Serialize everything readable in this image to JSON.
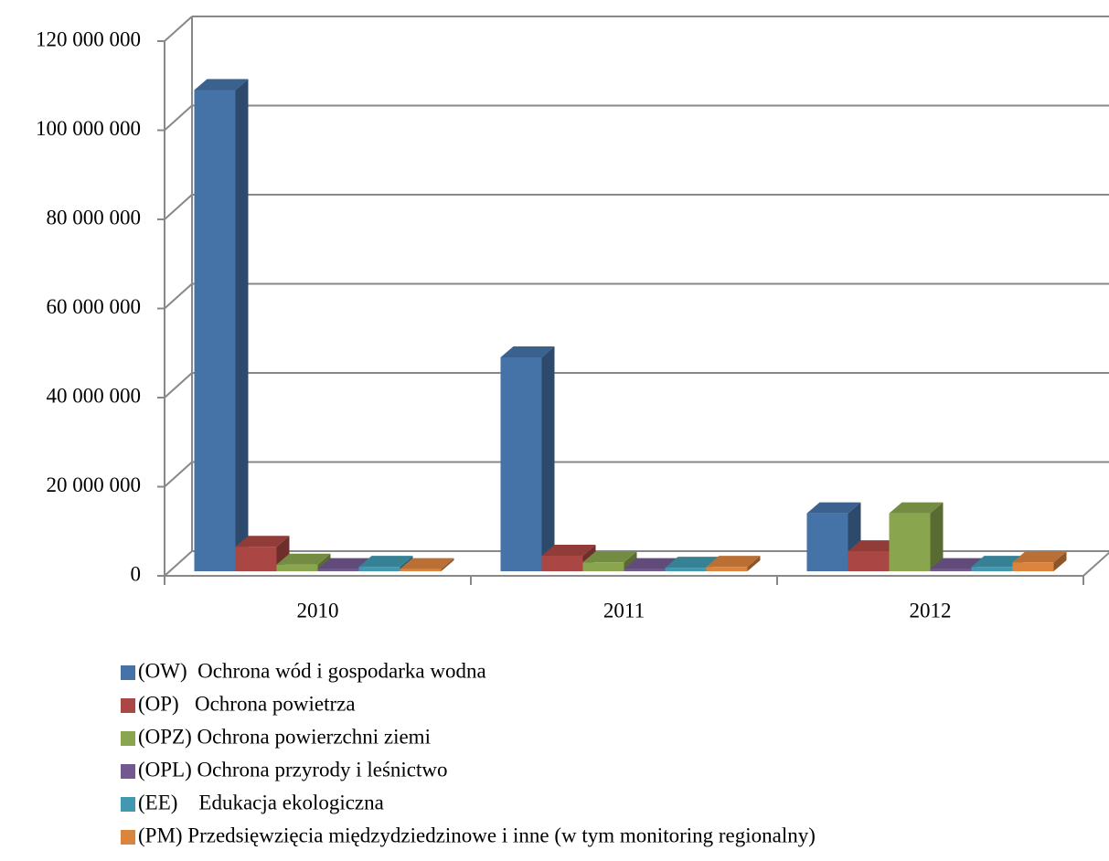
{
  "chart_data": {
    "type": "bar3d",
    "categories": [
      "2010",
      "2011",
      "2012"
    ],
    "series": [
      {
        "name": "(OW)  Ochrona wód i gospodarka wodna",
        "color": "#4572a7",
        "values": [
          108000000,
          48000000,
          13000000
        ]
      },
      {
        "name": "(OP)   Ochrona powietrza",
        "color": "#aa4643",
        "values": [
          5500000,
          3500000,
          4500000
        ]
      },
      {
        "name": "(OPZ) Ochrona powierzchni ziemi",
        "color": "#89a54e",
        "values": [
          1500000,
          2000000,
          13000000
        ]
      },
      {
        "name": "(OPL) Ochrona przyrody i leśnictwo",
        "color": "#71588f",
        "values": [
          500000,
          500000,
          500000
        ]
      },
      {
        "name": "(EE)    Edukacja ekologiczna",
        "color": "#4198af",
        "values": [
          1000000,
          800000,
          1000000
        ]
      },
      {
        "name": "(PM) Przedsięwzięcia międzydziedzinowe i inne (w tym monitoring regionalny)",
        "color": "#db843d",
        "values": [
          500000,
          1000000,
          2000000
        ]
      }
    ],
    "ylim": [
      0,
      120000000
    ],
    "yticks": [
      0,
      {
        "value": 20000000,
        "label": "20 000 000"
      },
      {
        "value": 40000000,
        "label": "40 000 000"
      },
      {
        "value": 60000000,
        "label": "60 000 000"
      },
      {
        "value": 80000000,
        "label": "80 000 000"
      },
      {
        "value": 100000000,
        "label": "100 000 000"
      },
      {
        "value": 120000000,
        "label": "120 000 000"
      }
    ],
    "grid": true,
    "legend": "bottom"
  }
}
